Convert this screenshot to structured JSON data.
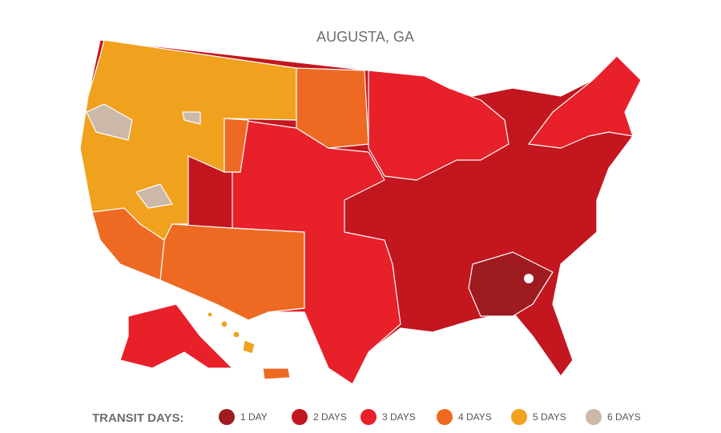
{
  "header": {
    "title": "AUGUSTA, GA"
  },
  "legend": {
    "label": "TRANSIT DAYS:",
    "items": [
      {
        "label": "1 DAY",
        "color": "#9e1b20"
      },
      {
        "label": "2 DAYS",
        "color": "#c3161f"
      },
      {
        "label": "3 DAYS",
        "color": "#e8202a"
      },
      {
        "label": "4 DAYS",
        "color": "#ee6a22"
      },
      {
        "label": "5 DAYS",
        "color": "#f0a11d"
      },
      {
        "label": "6 DAYS",
        "color": "#cbb8a8"
      }
    ]
  }
}
